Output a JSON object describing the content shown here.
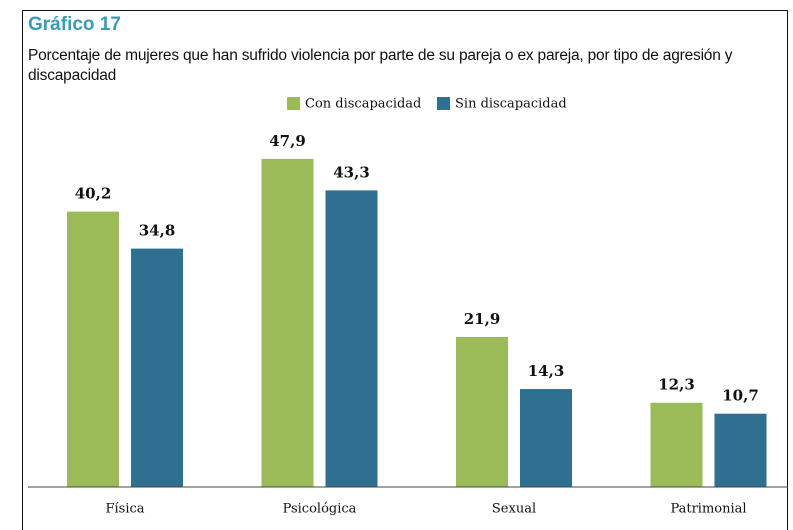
{
  "chart_data": {
    "type": "bar",
    "title": "Gráfico 17",
    "subtitle": "Porcentaje de mujeres que han sufrido violencia por parte de su pareja o ex pareja, por tipo de agresión y discapacidad",
    "categories": [
      "Física",
      "Psicológica",
      "Sexual",
      "Patrimonial"
    ],
    "series": [
      {
        "name": "Con discapacidad",
        "color": "#9bbb59",
        "values": [
          40.2,
          47.9,
          21.9,
          12.3
        ],
        "value_labels": [
          "40,2",
          "47,9",
          "21,9",
          "12,3"
        ]
      },
      {
        "name": "Sin discapacidad",
        "color": "#2f6f8f",
        "values": [
          34.8,
          43.3,
          14.3,
          10.7
        ],
        "value_labels": [
          "34,8",
          "43,3",
          "14,3",
          "10,7"
        ]
      }
    ]
  }
}
